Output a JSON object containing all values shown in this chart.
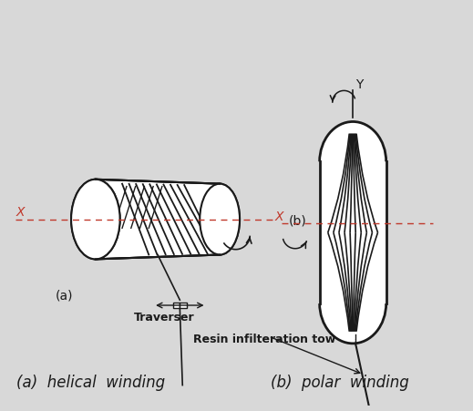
{
  "background_color": "#d8d8d8",
  "title_a": "(a)  helical  winding",
  "title_b": "(b)  polar  winding",
  "label_a": "(a)",
  "label_b": "(b)",
  "traverser_label": "Traverser",
  "resin_label": "Resin infilteration tow",
  "x_label": "X",
  "y_label": "Y",
  "font_size_titles": 12,
  "line_color": "#1a1a1a",
  "axis_color": "#c0392b",
  "figure_bg": "#d8d8d8"
}
